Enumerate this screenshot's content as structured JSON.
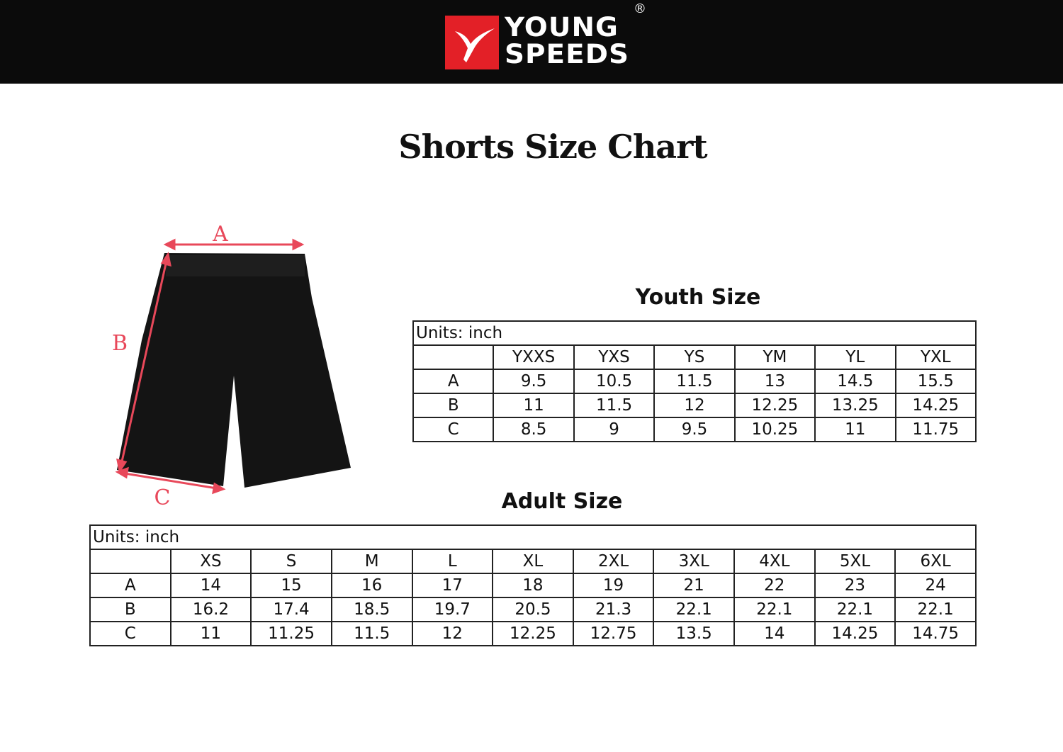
{
  "brand": {
    "name_line1": "YOUNG",
    "name_line2": "SPEEDS",
    "registered": "®",
    "accent": "#e32027"
  },
  "title": "Shorts Size Chart",
  "diagram": {
    "labels": {
      "a": "A",
      "b": "B",
      "c": "C"
    },
    "arrow_color": "#e8485a"
  },
  "youth": {
    "title": "Youth Size",
    "units": "Units: inch",
    "sizes": [
      "YXXS",
      "YXS",
      "YS",
      "YM",
      "YL",
      "YXL"
    ],
    "rows": [
      {
        "label": "A",
        "values": [
          "9.5",
          "10.5",
          "11.5",
          "13",
          "14.5",
          "15.5"
        ]
      },
      {
        "label": "B",
        "values": [
          "11",
          "11.5",
          "12",
          "12.25",
          "13.25",
          "14.25"
        ]
      },
      {
        "label": "C",
        "values": [
          "8.5",
          "9",
          "9.5",
          "10.25",
          "11",
          "11.75"
        ]
      }
    ]
  },
  "adult": {
    "title": "Adult Size",
    "units": "Units: inch",
    "sizes": [
      "XS",
      "S",
      "M",
      "L",
      "XL",
      "2XL",
      "3XL",
      "4XL",
      "5XL",
      "6XL"
    ],
    "rows": [
      {
        "label": "A",
        "values": [
          "14",
          "15",
          "16",
          "17",
          "18",
          "19",
          "21",
          "22",
          "23",
          "24"
        ]
      },
      {
        "label": "B",
        "values": [
          "16.2",
          "17.4",
          "18.5",
          "19.7",
          "20.5",
          "21.3",
          "22.1",
          "22.1",
          "22.1",
          "22.1"
        ]
      },
      {
        "label": "C",
        "values": [
          "11",
          "11.25",
          "11.5",
          "12",
          "12.25",
          "12.75",
          "13.5",
          "14",
          "14.25",
          "14.75"
        ]
      }
    ]
  }
}
